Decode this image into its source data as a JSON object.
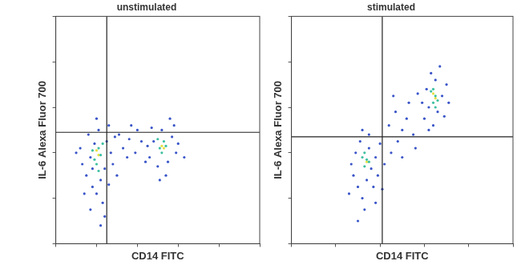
{
  "chart_data": [
    {
      "type": "scatter",
      "title": "unstimulated",
      "x_label": "CD14 FITC",
      "y_label": "IL-6 Alexa Fluor 700",
      "xlim": [
        0,
        100
      ],
      "ylim": [
        0,
        100
      ],
      "xticks": [
        0,
        20,
        40,
        60,
        80,
        100
      ],
      "yticks": [
        0,
        20,
        40,
        60,
        80,
        100
      ],
      "tick_labels": false,
      "grid": false,
      "gates": {
        "x": 25,
        "y": 49
      },
      "series": [
        {
          "color": "#3a55c8",
          "x": [
            15,
            18,
            20,
            22,
            24,
            17,
            19,
            25,
            27,
            13,
            16,
            21,
            23,
            26,
            28,
            12,
            18,
            29,
            20,
            24,
            14,
            30,
            22,
            17,
            26,
            46,
            48,
            50,
            52,
            55,
            57,
            59,
            47,
            54,
            60,
            45,
            58,
            51,
            56,
            33,
            36,
            39,
            42,
            35,
            40,
            31,
            44,
            37,
            63,
            10
          ],
          "y": [
            30,
            25,
            22,
            28,
            33,
            38,
            44,
            45,
            40,
            35,
            48,
            50,
            18,
            26,
            35,
            42,
            33,
            47,
            55,
            12,
            22,
            30,
            8,
            15,
            52,
            38,
            45,
            34,
            50,
            36,
            47,
            40,
            51,
            30,
            44,
            43,
            52,
            28,
            55,
            42,
            46,
            40,
            45,
            38,
            50,
            48,
            36,
            52,
            38,
            40
          ]
        },
        {
          "color": "#3cc0a0",
          "x": [
            19,
            21,
            20,
            22,
            18,
            23,
            21,
            51,
            53,
            52,
            50,
            54
          ],
          "y": [
            37,
            42,
            35,
            39,
            41,
            44,
            32,
            42,
            45,
            40,
            46,
            43
          ]
        },
        {
          "color": "#e8e040",
          "x": [
            21,
            20,
            52,
            53
          ],
          "y": [
            39,
            41,
            43,
            42
          ]
        }
      ]
    },
    {
      "type": "scatter",
      "title": "stimulated",
      "x_label": "CD14 FITC",
      "y_label": "IL-6 Alexa Fluor 700",
      "xlim": [
        0,
        100
      ],
      "ylim": [
        0,
        100
      ],
      "xticks": [
        0,
        20,
        40,
        60,
        80,
        100
      ],
      "yticks": [
        0,
        20,
        40,
        60,
        80,
        100
      ],
      "tick_labels": false,
      "grid": false,
      "gates": {
        "x": 41,
        "y": 47
      },
      "series": [
        {
          "color": "#3a55c8",
          "x": [
            28,
            30,
            32,
            34,
            36,
            38,
            29,
            31,
            35,
            37,
            39,
            33,
            27,
            40,
            26,
            35,
            30,
            38,
            32,
            60,
            62,
            64,
            66,
            68,
            70,
            61,
            63,
            67,
            69,
            59,
            65,
            71,
            62,
            45,
            48,
            50,
            52,
            47,
            55,
            44,
            53,
            42,
            57,
            50,
            46,
            41,
            56
          ],
          "y": [
            30,
            25,
            20,
            28,
            33,
            38,
            40,
            45,
            42,
            25,
            30,
            15,
            35,
            44,
            22,
            48,
            10,
            18,
            50,
            55,
            60,
            52,
            58,
            65,
            70,
            68,
            75,
            78,
            56,
            62,
            72,
            62,
            50,
            40,
            45,
            50,
            55,
            58,
            48,
            52,
            62,
            35,
            66,
            38,
            65,
            24,
            42
          ]
        },
        {
          "color": "#3cc0a0",
          "x": [
            33,
            34,
            32,
            35,
            33,
            64,
            65,
            66,
            63,
            65,
            64
          ],
          "y": [
            34,
            37,
            38,
            36,
            40,
            62,
            65,
            63,
            67,
            60,
            68
          ]
        },
        {
          "color": "#e8e040",
          "x": [
            65,
            64,
            34
          ],
          "y": [
            64,
            66,
            36
          ]
        }
      ]
    }
  ]
}
